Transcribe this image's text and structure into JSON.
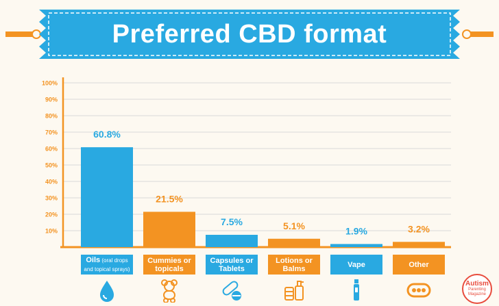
{
  "colors": {
    "blue": "#29a9e1",
    "orange": "#f39322",
    "background": "#fdf9f1",
    "grid": "#d9d9d9",
    "logo_red": "#e84c3d"
  },
  "logo": {
    "line1": "Autism",
    "line2": "Parenting",
    "line3": "Magazine"
  },
  "chart_data": {
    "type": "bar",
    "title": "Preferred CBD format",
    "categories": [
      "Oils",
      "Cummies or topicals",
      "Capsules or Tablets",
      "Lotions or Balms",
      "Vape",
      "Other"
    ],
    "category_notes": [
      "(oral drops and topical sprays)",
      "",
      "",
      "",
      "",
      ""
    ],
    "values": [
      60.8,
      21.5,
      7.5,
      5.1,
      1.9,
      3.2
    ],
    "value_labels": [
      "60.8%",
      "21.5%",
      "7.5%",
      "5.1%",
      "1.9%",
      "3.2%"
    ],
    "bar_colors": [
      "#29a9e1",
      "#f39322",
      "#29a9e1",
      "#f39322",
      "#29a9e1",
      "#f39322"
    ],
    "icons": [
      "drop-icon",
      "bear-icon",
      "pill-icon",
      "bottle-icon",
      "vape-icon",
      "dots-icon"
    ],
    "yticks": [
      "10%",
      "20%",
      "30%",
      "40%",
      "50%",
      "60%",
      "70%",
      "80%",
      "90%",
      "100%"
    ],
    "ylim": [
      0,
      100
    ],
    "grid": true,
    "legend": "none"
  }
}
